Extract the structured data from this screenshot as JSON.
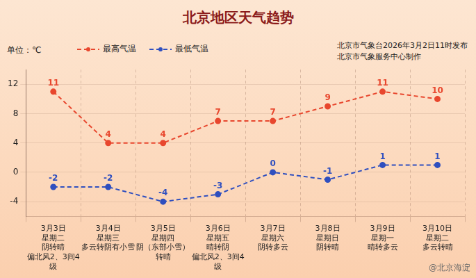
{
  "chart_data": {
    "type": "line",
    "title": "北京地区天气趋势",
    "unit": "单位：℃",
    "publisher": [
      "北京市气象台2026年3月2日11时发布",
      "北京市气象服务中心制作"
    ],
    "watermark": "@北京海淀",
    "categories": [
      "3月3日",
      "3月4日",
      "3月5日",
      "3月6日",
      "3月7日",
      "3月8日",
      "3月9日",
      "3月10日"
    ],
    "weekdays": [
      "星期二",
      "星期三",
      "星期四",
      "星期五",
      "星期六",
      "星期日",
      "星期一",
      "星期二"
    ],
    "weather": [
      "阴转晴",
      "多云转阴有小雪",
      "阴（东部小雪）转晴",
      "晴转阴",
      "阴转多云",
      "阴转晴",
      "晴转多云",
      "多云转晴"
    ],
    "wind": [
      "偏北风2、3间4级",
      null,
      null,
      "偏北风2、3间4级",
      null,
      null,
      null,
      null
    ],
    "series": [
      {
        "name": "最高气温",
        "color": "#e8472e",
        "values": [
          11,
          4,
          4,
          7,
          7,
          9,
          11,
          10
        ],
        "marker": "circle",
        "line_style": "dashed"
      },
      {
        "name": "最低气温",
        "color": "#2f4fbf",
        "values": [
          -2,
          -2,
          -4,
          -3,
          0,
          -1,
          1,
          1
        ],
        "marker": "circle",
        "line_style": "dashed"
      }
    ],
    "ylim": [
      -6,
      14
    ],
    "yticks": [
      -4,
      0,
      4,
      8,
      12
    ],
    "grid": true,
    "legend": "top",
    "data_labels": true
  }
}
